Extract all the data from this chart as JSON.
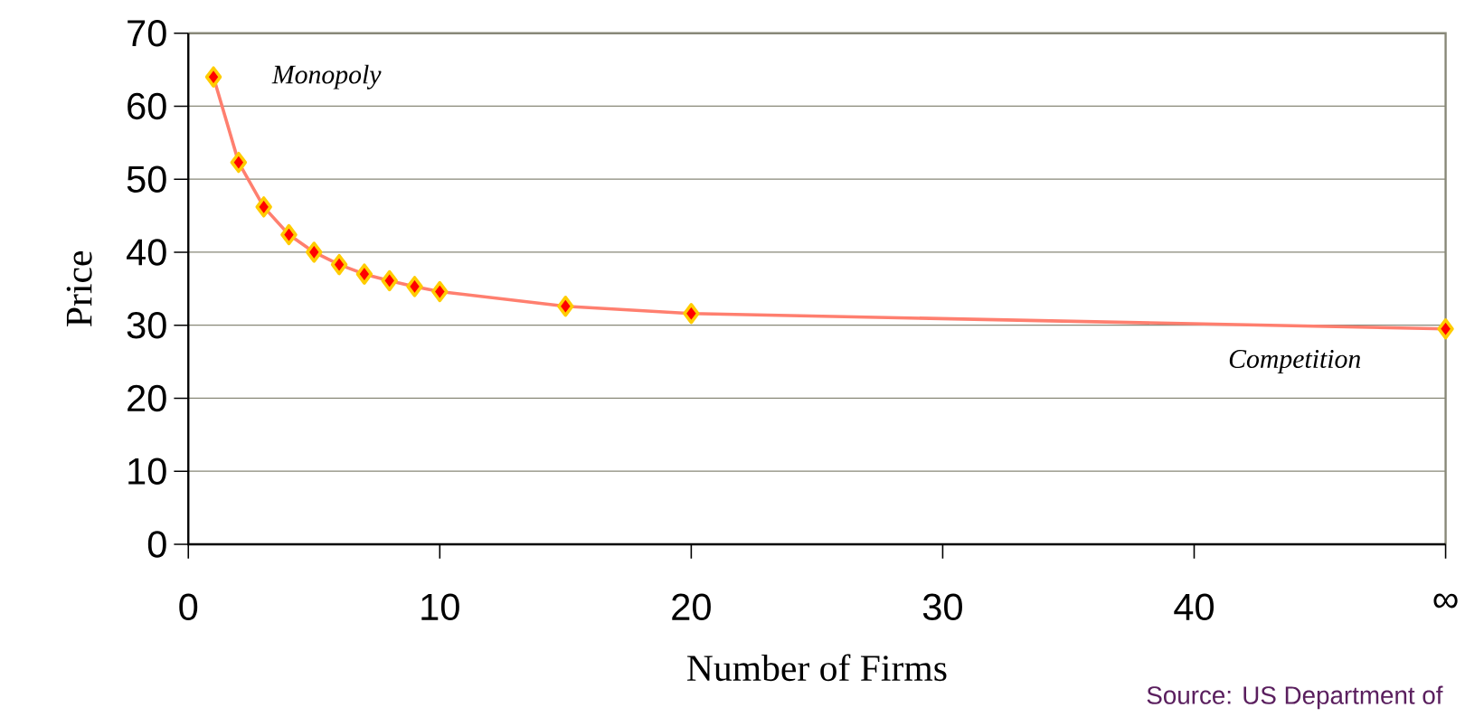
{
  "chart_data": {
    "type": "line",
    "xlabel": "Number of Firms",
    "ylabel": "Price",
    "x": [
      1,
      2,
      3,
      4,
      5,
      6,
      7,
      8,
      9,
      10,
      15,
      20,
      50
    ],
    "series": [
      {
        "color": "#ff7f6f",
        "values": [
          64,
          52.3,
          46.2,
          42.4,
          40,
          38.3,
          37,
          36.1,
          35.3,
          34.6,
          32.6,
          31.6,
          29.5
        ]
      }
    ],
    "xlim": [
      0,
      50
    ],
    "ylim": [
      0,
      70
    ],
    "xticks": [
      0,
      10,
      20,
      30,
      40,
      {
        "value": 50,
        "label": "∞"
      }
    ],
    "yticks": [
      0,
      10,
      20,
      30,
      40,
      50,
      60,
      70
    ],
    "grid": "y",
    "marker": "diamond",
    "line_style": "solid",
    "annotations": [
      "Monopoly",
      "Competition",
      "Source: US Department of"
    ]
  }
}
